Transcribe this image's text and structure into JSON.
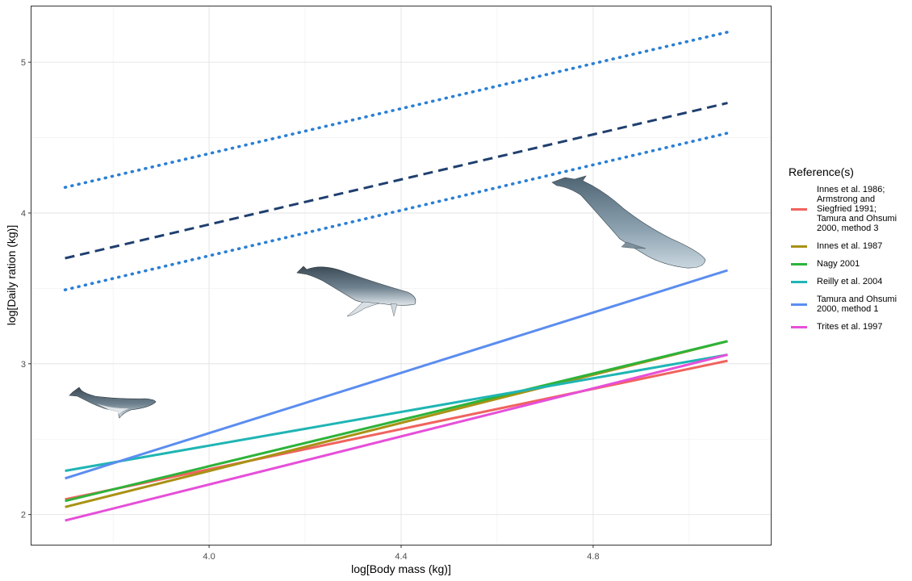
{
  "chart_data": {
    "type": "line",
    "xlabel": "log[Body mass (kg)]",
    "ylabel": "log[Daily ration (kg)]",
    "xlim": [
      3.63,
      5.17
    ],
    "ylim": [
      1.8,
      5.37
    ],
    "x_ticks": [
      {
        "value": 4.0,
        "label": "4.0"
      },
      {
        "value": 4.4,
        "label": "4.4"
      },
      {
        "value": 4.8,
        "label": "4.8"
      }
    ],
    "y_ticks": [
      {
        "value": 2,
        "label": "2"
      },
      {
        "value": 3,
        "label": "3"
      },
      {
        "value": 4,
        "label": "4"
      },
      {
        "value": 5,
        "label": "5"
      }
    ],
    "grid": true,
    "legend": {
      "title": "Reference(s)",
      "placement": "right",
      "entries": [
        {
          "label": "Innes et al. 1986; Armstrong and Siegfried 1991; Tamura and Ohsumi 2000, method 3",
          "color": "#f0635e"
        },
        {
          "label": "Innes et al. 1987",
          "color": "#a99214"
        },
        {
          "label": "Nagy 2001",
          "color": "#2db33a"
        },
        {
          "label": "Reilly et al. 2004",
          "color": "#1fb5b4"
        },
        {
          "label": "Tamura and Ohsumi 2000, method 1",
          "color": "#5b8def"
        },
        {
          "label": "Trites et al. 1997",
          "color": "#e64fd9"
        }
      ]
    },
    "series": [
      {
        "name": "Innes et al. 1986; Armstrong and Siegfried 1991; Tamura and Ohsumi 2000, method 3",
        "color": "#f0635e",
        "style": "solid",
        "x": [
          3.7,
          5.08
        ],
        "y": [
          2.1,
          3.02
        ]
      },
      {
        "name": "Innes et al. 1987",
        "color": "#a99214",
        "style": "solid",
        "x": [
          3.7,
          5.08
        ],
        "y": [
          2.05,
          3.15
        ]
      },
      {
        "name": "Nagy 2001",
        "color": "#2db33a",
        "style": "solid",
        "x": [
          3.7,
          5.08
        ],
        "y": [
          2.09,
          3.15
        ]
      },
      {
        "name": "Reilly et al. 2004",
        "color": "#1fb5b4",
        "style": "solid",
        "x": [
          3.7,
          5.08
        ],
        "y": [
          2.29,
          3.06
        ]
      },
      {
        "name": "Tamura and Ohsumi 2000, method 1",
        "color": "#5b8def",
        "style": "solid",
        "x": [
          3.7,
          5.08
        ],
        "y": [
          2.24,
          3.62
        ]
      },
      {
        "name": "Trites et al. 1997",
        "color": "#e64fd9",
        "style": "solid",
        "x": [
          3.7,
          5.08
        ],
        "y": [
          1.96,
          3.06
        ]
      },
      {
        "color": "#1f3f6f",
        "style": "dashed",
        "x": [
          3.7,
          5.08
        ],
        "y": [
          3.7,
          4.73
        ]
      },
      {
        "color": "#2a7fd4",
        "style": "dotted",
        "x": [
          3.7,
          5.08
        ],
        "y": [
          4.17,
          5.2
        ]
      },
      {
        "color": "#2a7fd4",
        "style": "dotted",
        "x": [
          3.7,
          5.08
        ],
        "y": [
          3.49,
          4.53
        ]
      }
    ],
    "annotations": [
      {
        "icon": "minke-whale-illustration",
        "x": 3.76,
        "y": 2.75
      },
      {
        "icon": "humpback-whale-illustration",
        "x": 4.31,
        "y": 3.52
      },
      {
        "icon": "blue-whale-illustration",
        "x": 4.92,
        "y": 3.95
      }
    ]
  }
}
